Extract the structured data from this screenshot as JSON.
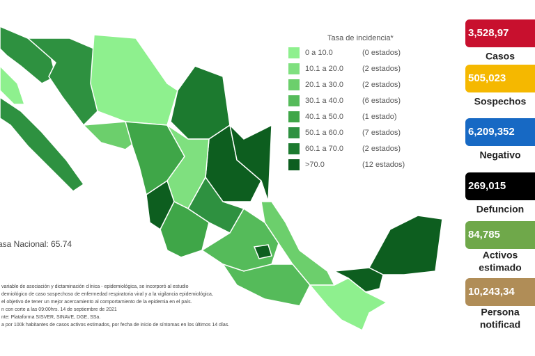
{
  "legend": {
    "title": "Tasa de incidencia*",
    "items": [
      {
        "range": "0   a  10.0",
        "count": "(0 estados)",
        "color": "#8ef08e"
      },
      {
        "range": "10.1 a  20.0",
        "count": "(2 estados)",
        "color": "#7fe07f"
      },
      {
        "range": "20.1 a  30.0",
        "count": "(2 estados)",
        "color": "#6ccf6c"
      },
      {
        "range": "30.1 a  40.0",
        "count": "(6 estados)",
        "color": "#55bb5a"
      },
      {
        "range": "40.1 a  50.0",
        "count": "(1 estado)",
        "color": "#3fa648"
      },
      {
        "range": "50.1 a  60.0",
        "count": "(7 estados)",
        "color": "#2e9140"
      },
      {
        "range": "60.1 a  70.0",
        "count": "(2 estados)",
        "color": "#1c7a2f"
      },
      {
        "range": ">70.0",
        "count": "(12 estados)",
        "color": "#0d5e1f"
      }
    ]
  },
  "national_rate": "asa Nacional: 65.74",
  "indicators": [
    {
      "value": "3,528,97",
      "label": [
        "Casos"
      ],
      "color": "#c8102e"
    },
    {
      "value": "505,023",
      "label": [
        "Sospechos"
      ],
      "color": "#f5b800"
    },
    {
      "value": "6,209,352",
      "label": [
        "Negativo"
      ],
      "color": "#1769c4"
    },
    {
      "value": "269,015",
      "label": [
        "Defuncion"
      ],
      "color": "#000000"
    },
    {
      "value": "84,785",
      "label": [
        "Activos",
        "estimado"
      ],
      "color": "#6fa84a"
    },
    {
      "value": "10,243,34",
      "label": [
        "Persona",
        "notificad"
      ],
      "color": "#b08d57"
    }
  ],
  "footnotes": [
    "variable de asociación y dictaminación clínica - epidemiológica, se incorporó al estudio",
    "demiológico de caso sospechoso de enfermedad respiratoria viral y a la vigilancia epidemiológica,",
    "el objetivo de tener un mejor acercamiento al comportamiento de la epidemia en el país.",
    "n con corte a las 09:00hrs. 14 de septiembre de 2021",
    "nte: Plataforma SISVER, SINAVE, DGE, SSa.",
    "a por 100k habitantes de casos activos estimados, por fecha de inicio de síntomas en los últimos 14 días."
  ]
}
